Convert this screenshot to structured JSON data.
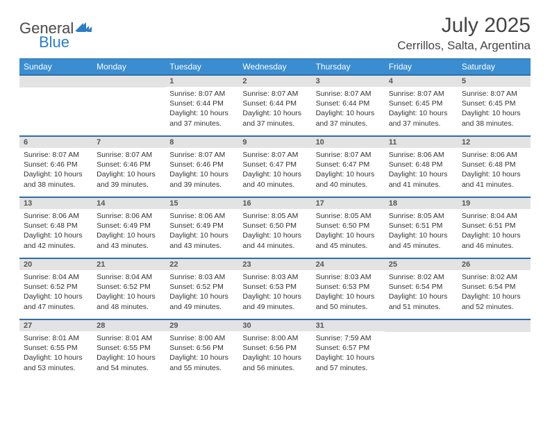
{
  "logo": {
    "general": "General",
    "blue": "Blue"
  },
  "title": "July 2025",
  "location": "Cerrillos, Salta, Argentina",
  "colors": {
    "header_bg": "#3a8dd0",
    "header_border": "#2d6ea5",
    "daynum_bg": "#e3e3e3",
    "text": "#333333",
    "logo_gray": "#555555",
    "logo_blue": "#2d7dc4"
  },
  "day_headers": [
    "Sunday",
    "Monday",
    "Tuesday",
    "Wednesday",
    "Thursday",
    "Friday",
    "Saturday"
  ],
  "weeks": [
    [
      {
        "n": "",
        "sunrise": "",
        "sunset": "",
        "daylight": ""
      },
      {
        "n": "",
        "sunrise": "",
        "sunset": "",
        "daylight": ""
      },
      {
        "n": "1",
        "sunrise": "Sunrise: 8:07 AM",
        "sunset": "Sunset: 6:44 PM",
        "daylight": "Daylight: 10 hours and 37 minutes."
      },
      {
        "n": "2",
        "sunrise": "Sunrise: 8:07 AM",
        "sunset": "Sunset: 6:44 PM",
        "daylight": "Daylight: 10 hours and 37 minutes."
      },
      {
        "n": "3",
        "sunrise": "Sunrise: 8:07 AM",
        "sunset": "Sunset: 6:44 PM",
        "daylight": "Daylight: 10 hours and 37 minutes."
      },
      {
        "n": "4",
        "sunrise": "Sunrise: 8:07 AM",
        "sunset": "Sunset: 6:45 PM",
        "daylight": "Daylight: 10 hours and 37 minutes."
      },
      {
        "n": "5",
        "sunrise": "Sunrise: 8:07 AM",
        "sunset": "Sunset: 6:45 PM",
        "daylight": "Daylight: 10 hours and 38 minutes."
      }
    ],
    [
      {
        "n": "6",
        "sunrise": "Sunrise: 8:07 AM",
        "sunset": "Sunset: 6:46 PM",
        "daylight": "Daylight: 10 hours and 38 minutes."
      },
      {
        "n": "7",
        "sunrise": "Sunrise: 8:07 AM",
        "sunset": "Sunset: 6:46 PM",
        "daylight": "Daylight: 10 hours and 39 minutes."
      },
      {
        "n": "8",
        "sunrise": "Sunrise: 8:07 AM",
        "sunset": "Sunset: 6:46 PM",
        "daylight": "Daylight: 10 hours and 39 minutes."
      },
      {
        "n": "9",
        "sunrise": "Sunrise: 8:07 AM",
        "sunset": "Sunset: 6:47 PM",
        "daylight": "Daylight: 10 hours and 40 minutes."
      },
      {
        "n": "10",
        "sunrise": "Sunrise: 8:07 AM",
        "sunset": "Sunset: 6:47 PM",
        "daylight": "Daylight: 10 hours and 40 minutes."
      },
      {
        "n": "11",
        "sunrise": "Sunrise: 8:06 AM",
        "sunset": "Sunset: 6:48 PM",
        "daylight": "Daylight: 10 hours and 41 minutes."
      },
      {
        "n": "12",
        "sunrise": "Sunrise: 8:06 AM",
        "sunset": "Sunset: 6:48 PM",
        "daylight": "Daylight: 10 hours and 41 minutes."
      }
    ],
    [
      {
        "n": "13",
        "sunrise": "Sunrise: 8:06 AM",
        "sunset": "Sunset: 6:48 PM",
        "daylight": "Daylight: 10 hours and 42 minutes."
      },
      {
        "n": "14",
        "sunrise": "Sunrise: 8:06 AM",
        "sunset": "Sunset: 6:49 PM",
        "daylight": "Daylight: 10 hours and 43 minutes."
      },
      {
        "n": "15",
        "sunrise": "Sunrise: 8:06 AM",
        "sunset": "Sunset: 6:49 PM",
        "daylight": "Daylight: 10 hours and 43 minutes."
      },
      {
        "n": "16",
        "sunrise": "Sunrise: 8:05 AM",
        "sunset": "Sunset: 6:50 PM",
        "daylight": "Daylight: 10 hours and 44 minutes."
      },
      {
        "n": "17",
        "sunrise": "Sunrise: 8:05 AM",
        "sunset": "Sunset: 6:50 PM",
        "daylight": "Daylight: 10 hours and 45 minutes."
      },
      {
        "n": "18",
        "sunrise": "Sunrise: 8:05 AM",
        "sunset": "Sunset: 6:51 PM",
        "daylight": "Daylight: 10 hours and 45 minutes."
      },
      {
        "n": "19",
        "sunrise": "Sunrise: 8:04 AM",
        "sunset": "Sunset: 6:51 PM",
        "daylight": "Daylight: 10 hours and 46 minutes."
      }
    ],
    [
      {
        "n": "20",
        "sunrise": "Sunrise: 8:04 AM",
        "sunset": "Sunset: 6:52 PM",
        "daylight": "Daylight: 10 hours and 47 minutes."
      },
      {
        "n": "21",
        "sunrise": "Sunrise: 8:04 AM",
        "sunset": "Sunset: 6:52 PM",
        "daylight": "Daylight: 10 hours and 48 minutes."
      },
      {
        "n": "22",
        "sunrise": "Sunrise: 8:03 AM",
        "sunset": "Sunset: 6:52 PM",
        "daylight": "Daylight: 10 hours and 49 minutes."
      },
      {
        "n": "23",
        "sunrise": "Sunrise: 8:03 AM",
        "sunset": "Sunset: 6:53 PM",
        "daylight": "Daylight: 10 hours and 49 minutes."
      },
      {
        "n": "24",
        "sunrise": "Sunrise: 8:03 AM",
        "sunset": "Sunset: 6:53 PM",
        "daylight": "Daylight: 10 hours and 50 minutes."
      },
      {
        "n": "25",
        "sunrise": "Sunrise: 8:02 AM",
        "sunset": "Sunset: 6:54 PM",
        "daylight": "Daylight: 10 hours and 51 minutes."
      },
      {
        "n": "26",
        "sunrise": "Sunrise: 8:02 AM",
        "sunset": "Sunset: 6:54 PM",
        "daylight": "Daylight: 10 hours and 52 minutes."
      }
    ],
    [
      {
        "n": "27",
        "sunrise": "Sunrise: 8:01 AM",
        "sunset": "Sunset: 6:55 PM",
        "daylight": "Daylight: 10 hours and 53 minutes."
      },
      {
        "n": "28",
        "sunrise": "Sunrise: 8:01 AM",
        "sunset": "Sunset: 6:55 PM",
        "daylight": "Daylight: 10 hours and 54 minutes."
      },
      {
        "n": "29",
        "sunrise": "Sunrise: 8:00 AM",
        "sunset": "Sunset: 6:56 PM",
        "daylight": "Daylight: 10 hours and 55 minutes."
      },
      {
        "n": "30",
        "sunrise": "Sunrise: 8:00 AM",
        "sunset": "Sunset: 6:56 PM",
        "daylight": "Daylight: 10 hours and 56 minutes."
      },
      {
        "n": "31",
        "sunrise": "Sunrise: 7:59 AM",
        "sunset": "Sunset: 6:57 PM",
        "daylight": "Daylight: 10 hours and 57 minutes."
      },
      {
        "n": "",
        "sunrise": "",
        "sunset": "",
        "daylight": ""
      },
      {
        "n": "",
        "sunrise": "",
        "sunset": "",
        "daylight": ""
      }
    ]
  ]
}
